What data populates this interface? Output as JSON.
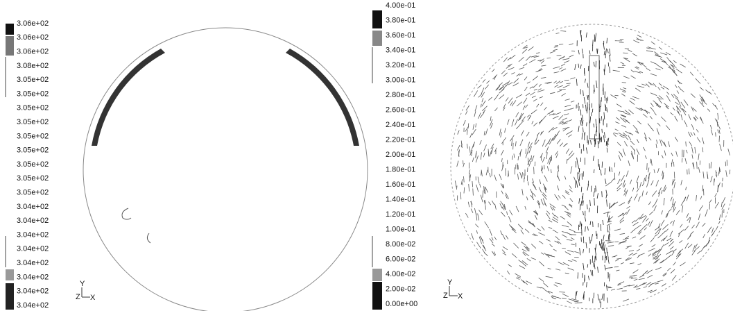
{
  "left_panel": {
    "legend": [
      "3.06e+02",
      "3.06e+02",
      "3.06e+02",
      "3.08e+02",
      "3.05e+02",
      "3.05e+02",
      "3.05e+02",
      "3.05e+02",
      "3.05e+02",
      "3.05e+02",
      "3.05e+02",
      "3.05e+02",
      "3.05e+02",
      "3.04e+02",
      "3.04e+02",
      "3.04e+02",
      "3.04e+02",
      "3.04e+02",
      "3.04e+02",
      "3.04e+02",
      "3.04e+02"
    ],
    "axes": {
      "y": "Y",
      "z": "Z",
      "x": "X"
    }
  },
  "right_panel": {
    "legend": [
      "4.00e-01",
      "3.80e-01",
      "3.60e-01",
      "3.40e-01",
      "3.20e-01",
      "3.00e-01",
      "2.80e-01",
      "2.60e-01",
      "2.40e-01",
      "2.20e-01",
      "2.00e-01",
      "1.80e-01",
      "1.60e-01",
      "1.40e-01",
      "1.20e-01",
      "1.00e-01",
      "8.00e-02",
      "6.00e-02",
      "4.00e-02",
      "2.00e-02",
      "0.00e+00"
    ],
    "axes": {
      "y": "Y",
      "z": "Z",
      "x": "X"
    }
  }
}
